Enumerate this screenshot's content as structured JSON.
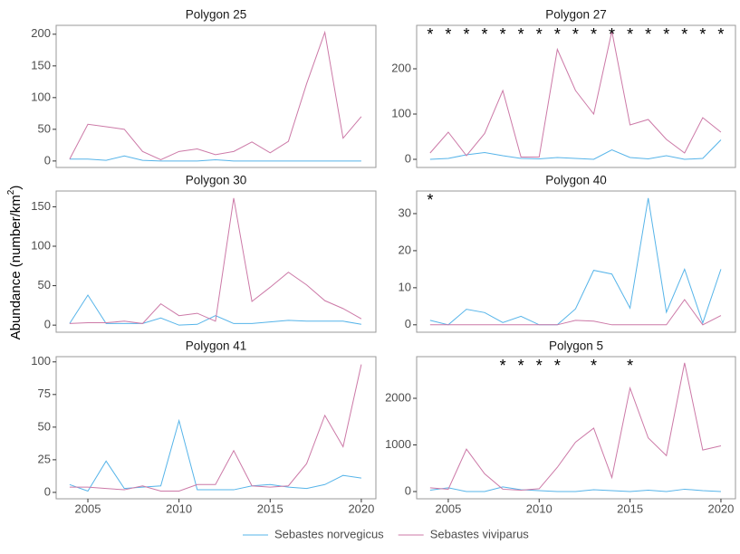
{
  "ylabel": [
    "Abundance (number/km",
    "2",
    ")"
  ],
  "series": [
    {
      "name": "Sebastes norvegicus",
      "color": "#56b4e9"
    },
    {
      "name": "Sebastes viviparus",
      "color": "#cc79a7"
    }
  ],
  "chart_data": [
    {
      "type": "line",
      "title": "Polygon 25",
      "x": [
        2004,
        2005,
        2006,
        2007,
        2008,
        2009,
        2010,
        2011,
        2012,
        2013,
        2014,
        2015,
        2016,
        2017,
        2018,
        2019,
        2020
      ],
      "xlim": [
        2003.26,
        2020.8
      ],
      "ylim": [
        -10.2,
        214
      ],
      "yticks": [
        0,
        50,
        100,
        150,
        200
      ],
      "series": [
        {
          "values": [
            3,
            3,
            1,
            8,
            1,
            0,
            0,
            0,
            2,
            0,
            0,
            0,
            0,
            0,
            0,
            0,
            0
          ]
        },
        {
          "values": [
            3,
            58,
            54,
            50,
            15,
            2,
            15,
            19,
            10,
            15,
            30,
            13,
            31,
            122,
            203,
            36,
            70
          ]
        }
      ],
      "annotations": []
    },
    {
      "type": "line",
      "title": "Polygon 27",
      "x": [
        2004,
        2005,
        2006,
        2007,
        2008,
        2009,
        2010,
        2011,
        2012,
        2013,
        2014,
        2015,
        2016,
        2017,
        2018,
        2019,
        2020
      ],
      "xlim": [
        2003.26,
        2020.8
      ],
      "ylim": [
        -18,
        296
      ],
      "yticks": [
        0,
        100,
        200
      ],
      "series": [
        {
          "values": [
            0,
            2,
            10,
            15,
            8,
            2,
            1,
            4,
            2,
            0,
            21,
            4,
            1,
            8,
            0,
            2,
            43
          ]
        },
        {
          "values": [
            14,
            60,
            8,
            57,
            152,
            5,
            5,
            243,
            152,
            100,
            283,
            76,
            88,
            44,
            14,
            92,
            60
          ]
        }
      ],
      "annotations": [
        {
          "x": 2004,
          "text": "*"
        },
        {
          "x": 2005,
          "text": "*"
        },
        {
          "x": 2006,
          "text": "*"
        },
        {
          "x": 2007,
          "text": "*"
        },
        {
          "x": 2008,
          "text": "*"
        },
        {
          "x": 2009,
          "text": "*"
        },
        {
          "x": 2010,
          "text": "*"
        },
        {
          "x": 2011,
          "text": "*"
        },
        {
          "x": 2012,
          "text": "*"
        },
        {
          "x": 2013,
          "text": "*"
        },
        {
          "x": 2014,
          "text": "*"
        },
        {
          "x": 2015,
          "text": "*"
        },
        {
          "x": 2016,
          "text": "*"
        },
        {
          "x": 2017,
          "text": "*"
        },
        {
          "x": 2018,
          "text": "*"
        },
        {
          "x": 2019,
          "text": "*"
        },
        {
          "x": 2020,
          "text": "*"
        }
      ]
    },
    {
      "type": "line",
      "title": "Polygon 30",
      "x": [
        2004,
        2005,
        2006,
        2007,
        2008,
        2009,
        2010,
        2011,
        2012,
        2013,
        2014,
        2015,
        2016,
        2017,
        2018,
        2019,
        2020
      ],
      "xlim": [
        2003.26,
        2020.8
      ],
      "ylim": [
        -9,
        170
      ],
      "yticks": [
        0,
        50,
        100,
        150
      ],
      "series": [
        {
          "values": [
            2,
            38,
            2,
            2,
            2,
            9,
            0,
            1,
            12,
            2,
            2,
            4,
            6,
            5,
            5,
            5,
            1
          ]
        },
        {
          "values": [
            2,
            3,
            3,
            5,
            2,
            27,
            12,
            15,
            5,
            161,
            30,
            48,
            67,
            51,
            31,
            21,
            8
          ]
        }
      ],
      "annotations": []
    },
    {
      "type": "line",
      "title": "Polygon 40",
      "x": [
        2004,
        2005,
        2006,
        2007,
        2008,
        2009,
        2010,
        2011,
        2012,
        2013,
        2014,
        2015,
        2016,
        2017,
        2018,
        2019,
        2020
      ],
      "xlim": [
        2003.26,
        2020.8
      ],
      "ylim": [
        -2,
        36.1
      ],
      "yticks": [
        0,
        10,
        20,
        30
      ],
      "series": [
        {
          "values": [
            1.2,
            0,
            4.2,
            3.3,
            0.6,
            2.3,
            0,
            0,
            4.3,
            14.7,
            13.7,
            4.5,
            34.2,
            3.4,
            15,
            0.5,
            15
          ]
        },
        {
          "values": [
            0,
            0,
            0,
            0,
            0,
            0,
            0,
            0,
            1.2,
            1,
            0,
            0,
            0,
            0,
            6.8,
            0,
            2.5
          ]
        }
      ],
      "annotations": [
        {
          "x": 2004,
          "text": "*"
        }
      ]
    },
    {
      "type": "line",
      "title": "Polygon 41",
      "x": [
        2004,
        2005,
        2006,
        2007,
        2008,
        2009,
        2010,
        2011,
        2012,
        2013,
        2014,
        2015,
        2016,
        2017,
        2018,
        2019,
        2020
      ],
      "xlim": [
        2003.26,
        2020.8
      ],
      "ylim": [
        -4.9,
        104
      ],
      "yticks": [
        0,
        25,
        50,
        75,
        100
      ],
      "xticks": [
        2005,
        2010,
        2015,
        2020
      ],
      "series": [
        {
          "values": [
            6,
            1,
            24,
            3,
            4,
            5,
            55,
            2,
            2,
            2,
            5,
            6,
            4,
            3,
            6,
            13,
            11
          ]
        },
        {
          "values": [
            4,
            4,
            3,
            2,
            5,
            1,
            1,
            6,
            6,
            32,
            5,
            4,
            5,
            22,
            59,
            35,
            98
          ]
        }
      ],
      "annotations": []
    },
    {
      "type": "line",
      "title": "Polygon 5",
      "x": [
        2004,
        2005,
        2006,
        2007,
        2008,
        2009,
        2010,
        2011,
        2012,
        2013,
        2014,
        2015,
        2016,
        2017,
        2018,
        2019,
        2020
      ],
      "xlim": [
        2003.26,
        2020.8
      ],
      "ylim": [
        -155,
        2893
      ],
      "yticks": [
        0,
        1000,
        2000
      ],
      "xticks": [
        2005,
        2010,
        2015,
        2020
      ],
      "series": [
        {
          "values": [
            30,
            80,
            0,
            0,
            100,
            40,
            20,
            0,
            0,
            40,
            20,
            0,
            30,
            0,
            50,
            20,
            0
          ]
        },
        {
          "values": [
            80,
            50,
            910,
            380,
            50,
            30,
            60,
            520,
            1060,
            1360,
            300,
            2220,
            1150,
            770,
            2760,
            890,
            980
          ]
        }
      ],
      "annotations": [
        {
          "x": 2008,
          "text": "*"
        },
        {
          "x": 2009,
          "text": "*"
        },
        {
          "x": 2010,
          "text": "*"
        },
        {
          "x": 2011,
          "text": "*"
        },
        {
          "x": 2013,
          "text": "*"
        },
        {
          "x": 2015,
          "text": "*"
        }
      ]
    }
  ]
}
